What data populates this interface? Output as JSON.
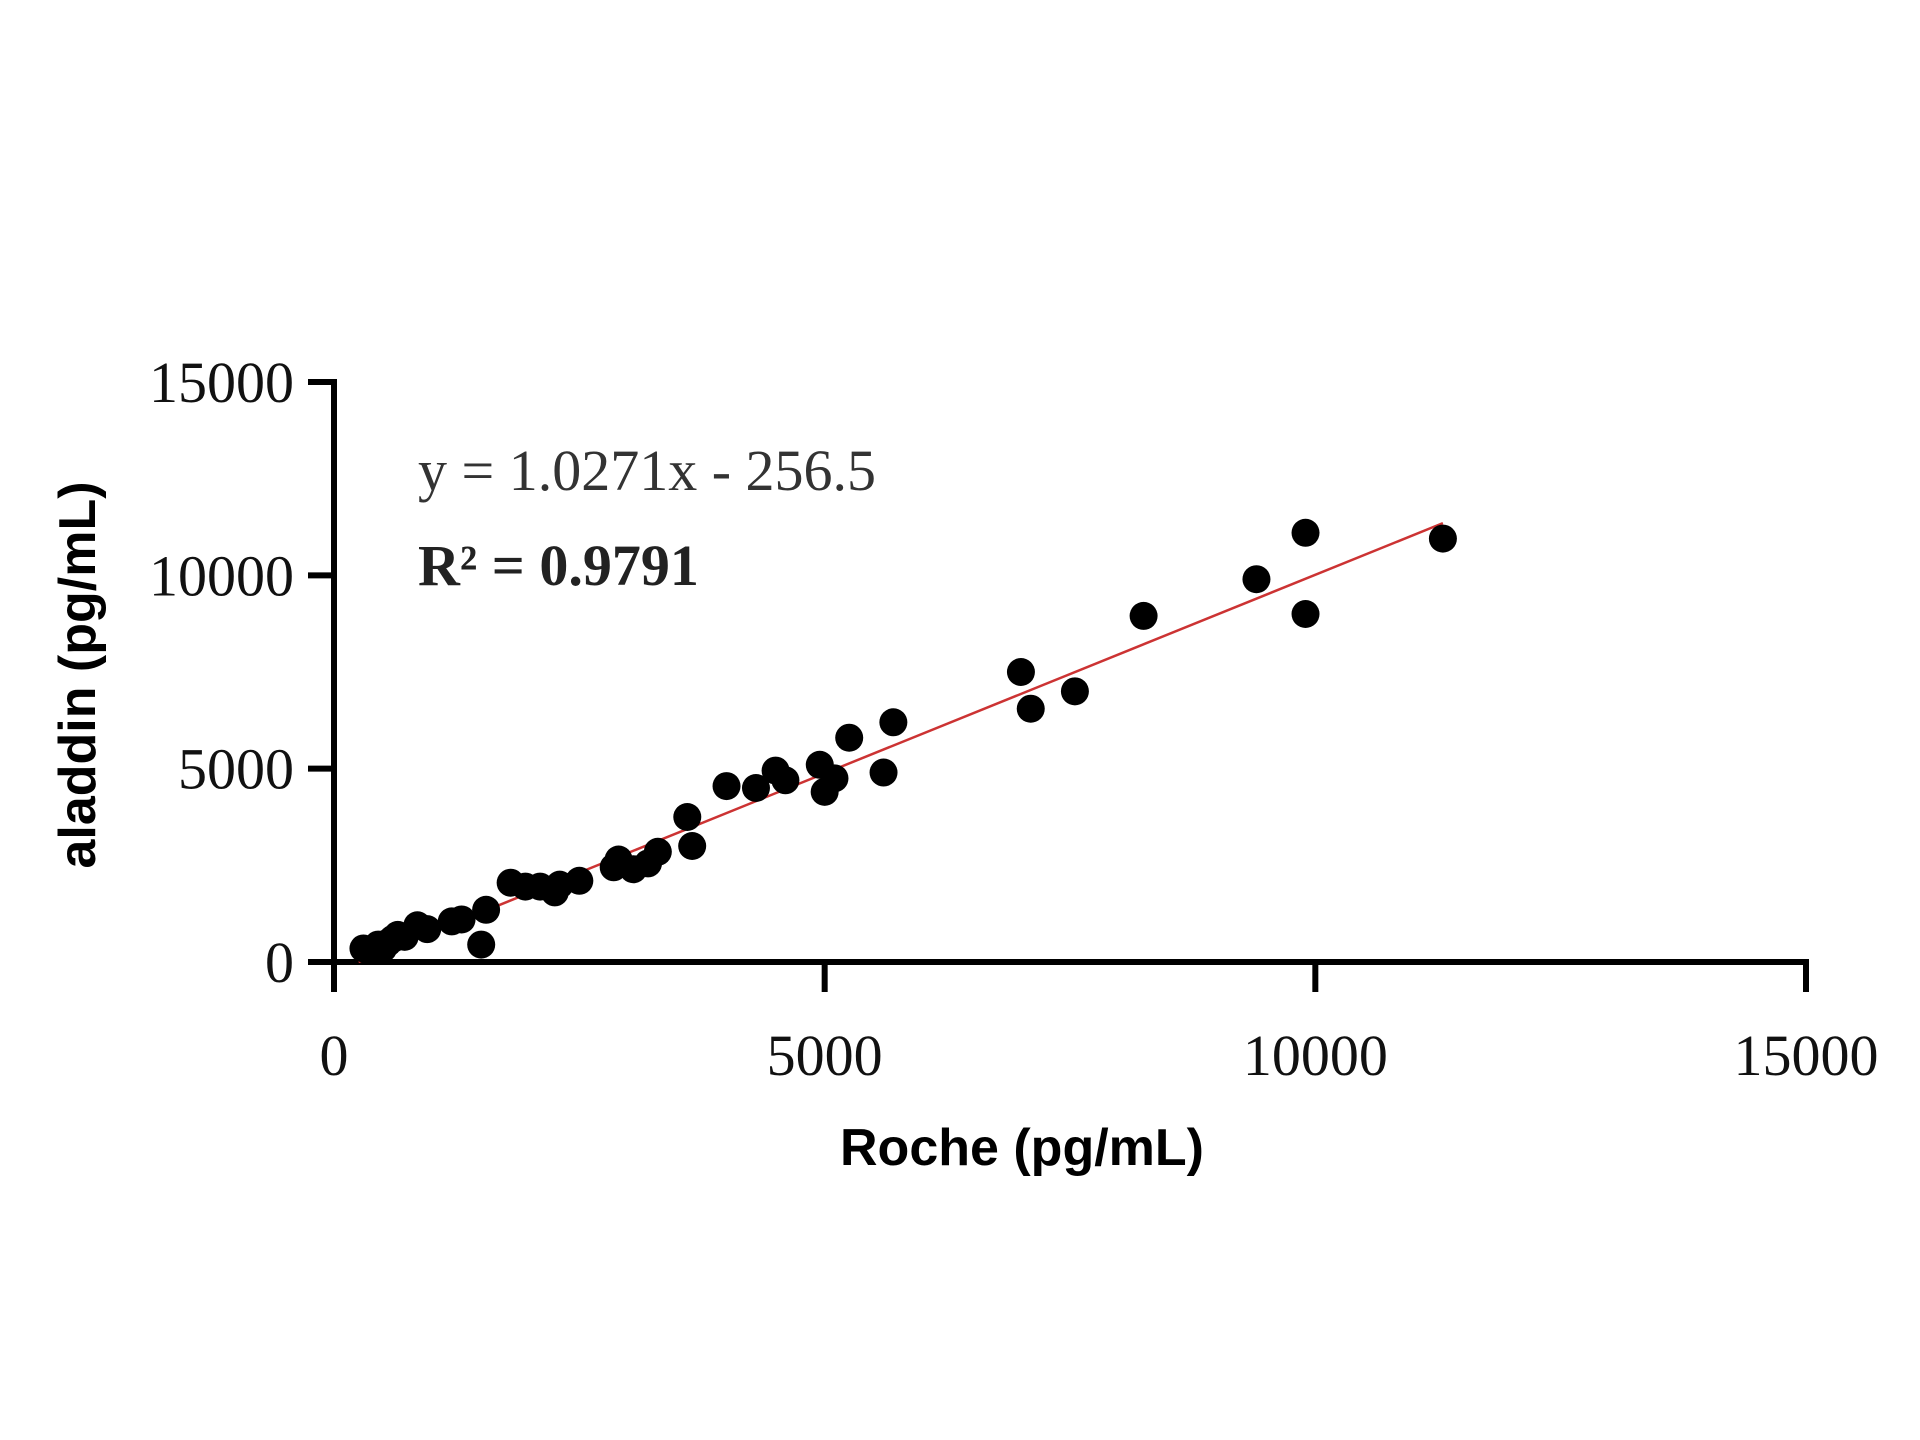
{
  "chart_data": {
    "type": "scatter",
    "title": "",
    "xlabel": "Roche (pg/mL)",
    "ylabel": "aladdin (pg/mL)",
    "xlim": [
      0,
      15000
    ],
    "ylim": [
      0,
      15000
    ],
    "xticks": [
      "0",
      "5000",
      "10000",
      "15000"
    ],
    "yticks": [
      "0",
      "5000",
      "10000",
      "15000"
    ],
    "grid": false,
    "point_color": "#000000",
    "line_color": "#cc3333",
    "annotations": {
      "equation": "y = 1.0271x - 256.5",
      "r2_label": "R² = ",
      "r2_value": "0.9791"
    },
    "trendline": {
      "slope": 1.0271,
      "intercept": -256.5,
      "x_range": [
        250,
        11300
      ]
    },
    "points": [
      [
        300,
        350
      ],
      [
        380,
        300
      ],
      [
        450,
        450
      ],
      [
        500,
        350
      ],
      [
        550,
        500
      ],
      [
        600,
        600
      ],
      [
        650,
        700
      ],
      [
        720,
        650
      ],
      [
        850,
        950
      ],
      [
        950,
        850
      ],
      [
        1200,
        1050
      ],
      [
        1300,
        1100
      ],
      [
        1500,
        450
      ],
      [
        1550,
        1350
      ],
      [
        1800,
        2050
      ],
      [
        1950,
        1950
      ],
      [
        2100,
        1950
      ],
      [
        2250,
        1800
      ],
      [
        2300,
        2000
      ],
      [
        2500,
        2100
      ],
      [
        2850,
        2450
      ],
      [
        2900,
        2650
      ],
      [
        3050,
        2400
      ],
      [
        3200,
        2550
      ],
      [
        3300,
        2850
      ],
      [
        3600,
        3750
      ],
      [
        3650,
        3000
      ],
      [
        4000,
        4550
      ],
      [
        4300,
        4500
      ],
      [
        4500,
        4950
      ],
      [
        4600,
        4700
      ],
      [
        4950,
        5100
      ],
      [
        5000,
        4400
      ],
      [
        5100,
        4750
      ],
      [
        5250,
        5800
      ],
      [
        5600,
        4900
      ],
      [
        5700,
        6200
      ],
      [
        7000,
        7500
      ],
      [
        7100,
        6550
      ],
      [
        7550,
        7000
      ],
      [
        8250,
        8950
      ],
      [
        9400,
        9900
      ],
      [
        9900,
        11100
      ],
      [
        9900,
        9000
      ],
      [
        11300,
        10950
      ]
    ]
  }
}
